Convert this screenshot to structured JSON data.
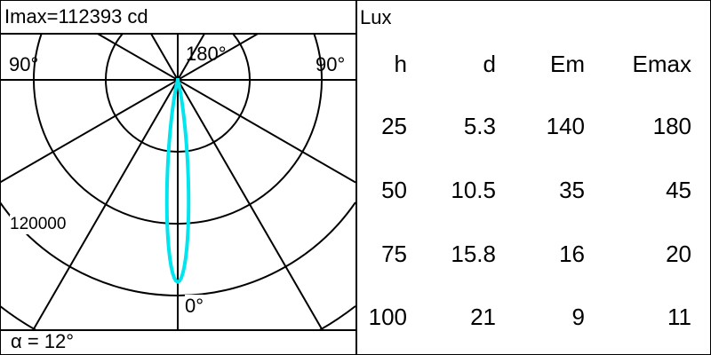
{
  "left_panel": {
    "header": "Imax=112393 cd",
    "footer": "α = 12°",
    "angle_labels": {
      "left": "90°",
      "top": "180°",
      "right": "90°",
      "bottom": "0°"
    },
    "ring_label": "120000",
    "curve_color": "#00e5ee"
  },
  "right_panel": {
    "header": "Lux",
    "columns": [
      "h",
      "d",
      "Em",
      "Emax"
    ],
    "rows": [
      [
        "25",
        "5.3",
        "140",
        "180"
      ],
      [
        "50",
        "10.5",
        "35",
        "45"
      ],
      [
        "75",
        "15.8",
        "16",
        "20"
      ],
      [
        "100",
        "21",
        "9",
        "11"
      ]
    ]
  }
}
